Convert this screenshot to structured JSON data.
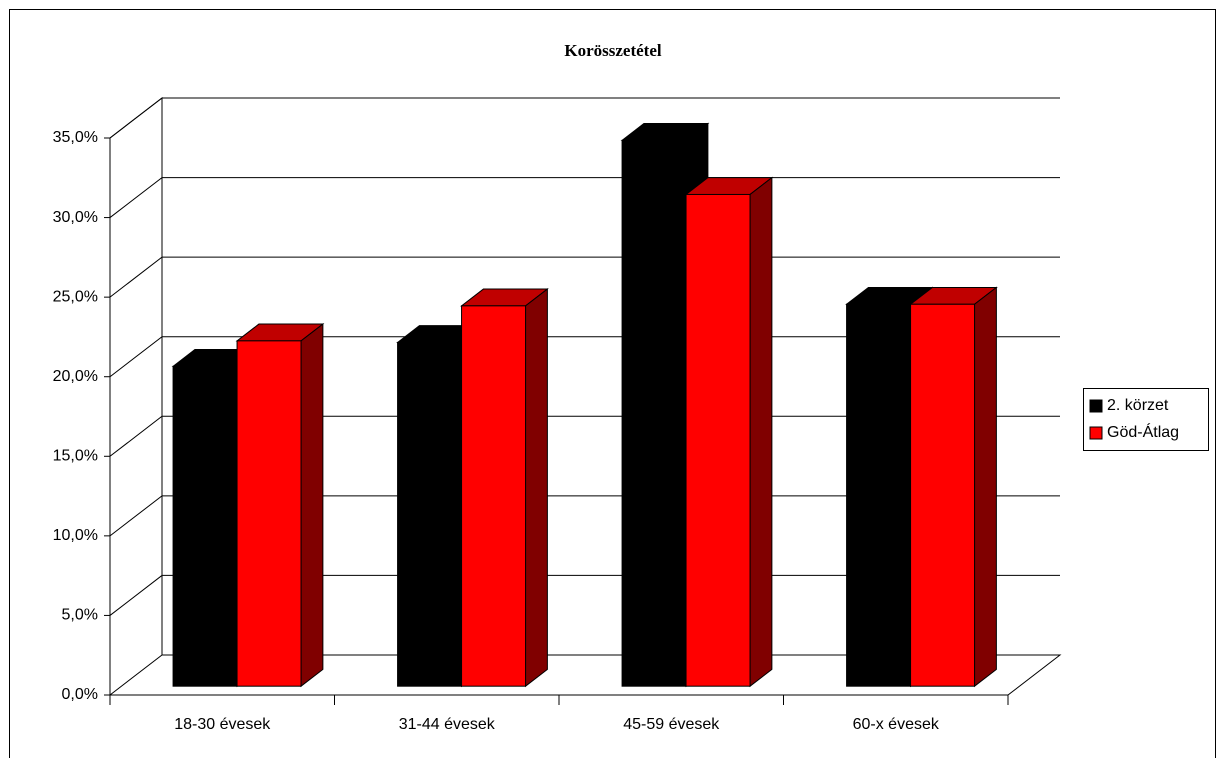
{
  "chart_data": {
    "type": "bar3d",
    "title": "Korösszetétel",
    "categories": [
      "18-30 évesek",
      "31-44 évesek",
      "45-59 évesek",
      "60-x évesek"
    ],
    "series": [
      {
        "name": "2. körzet",
        "color": "#000000",
        "values": [
          20.1,
          21.6,
          34.3,
          24.0
        ]
      },
      {
        "name": "Göd-Átlag",
        "color": "#ff0000",
        "values": [
          21.7,
          23.9,
          30.9,
          24.0
        ]
      }
    ],
    "ylim": [
      0,
      35
    ],
    "yticks": [
      {
        "value": 0,
        "label": "0,0%"
      },
      {
        "value": 5,
        "label": "5,0%"
      },
      {
        "value": 10,
        "label": "10,0%"
      },
      {
        "value": 15,
        "label": "15,0%"
      },
      {
        "value": 20,
        "label": "20,0%"
      },
      {
        "value": 25,
        "label": "25,0%"
      },
      {
        "value": 30,
        "label": "30,0%"
      },
      {
        "value": 35,
        "label": "35,0%"
      }
    ],
    "grid": true,
    "legend": "right"
  }
}
